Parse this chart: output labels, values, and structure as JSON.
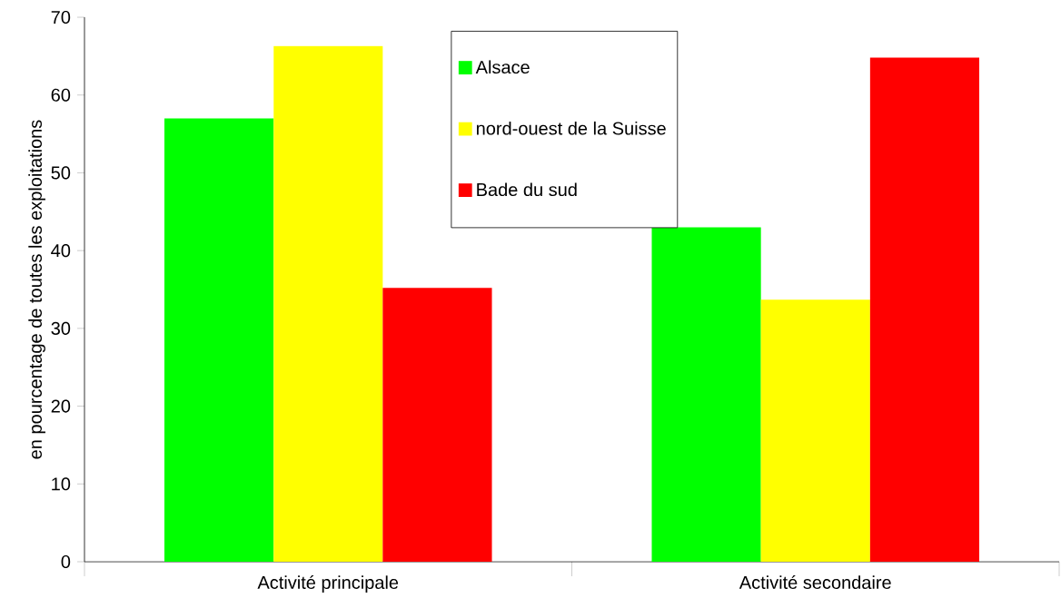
{
  "chart_data": {
    "type": "bar",
    "ylabel": "en pourcentage de toutes les exploitations",
    "categories": [
      "Activité principale",
      "Activité secondaire"
    ],
    "series": [
      {
        "name": "Alsace",
        "color": "#00ff00",
        "values": [
          57,
          43
        ]
      },
      {
        "name": "nord-ouest de la Suisse",
        "color": "#ffff00",
        "values": [
          66.3,
          33.7
        ]
      },
      {
        "name": "Bade du sud",
        "color": "#ff0000",
        "values": [
          35.2,
          64.8
        ]
      }
    ],
    "ylim": [
      0,
      70
    ],
    "yticks": [
      0,
      10,
      20,
      30,
      40,
      50,
      60,
      70
    ],
    "grid": false,
    "legend": "top"
  }
}
